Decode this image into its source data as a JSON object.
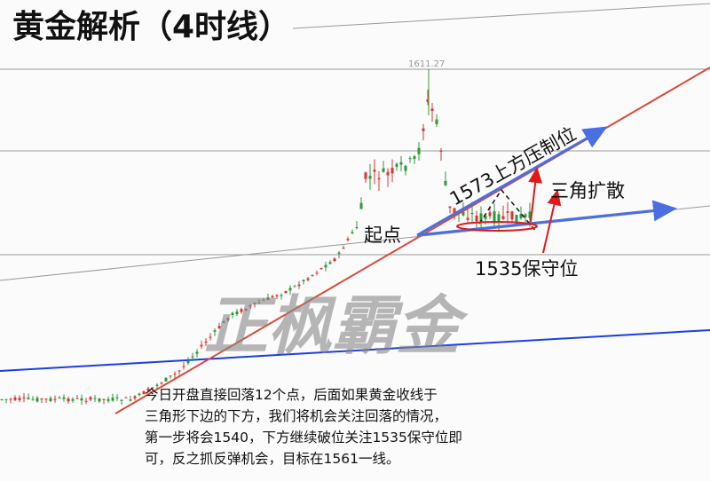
{
  "title": "黄金解析（4时线）",
  "price_label": "1611.27",
  "annotations": {
    "resistance": "1573上方压制位",
    "triangle": "三角扩散",
    "start": "起点",
    "support": "1535保守位"
  },
  "watermark": "正枫霸金",
  "analysis": [
    "今日开盘直接回落12个点，后面如果黄金收线于",
    "三角形下边的下方，我们将机会关注回落的情况，",
    "第一步将会1540，下方继续破位关注1535保守位即",
    "可，反之抓反弹机会，目标在1561一线。"
  ]
}
